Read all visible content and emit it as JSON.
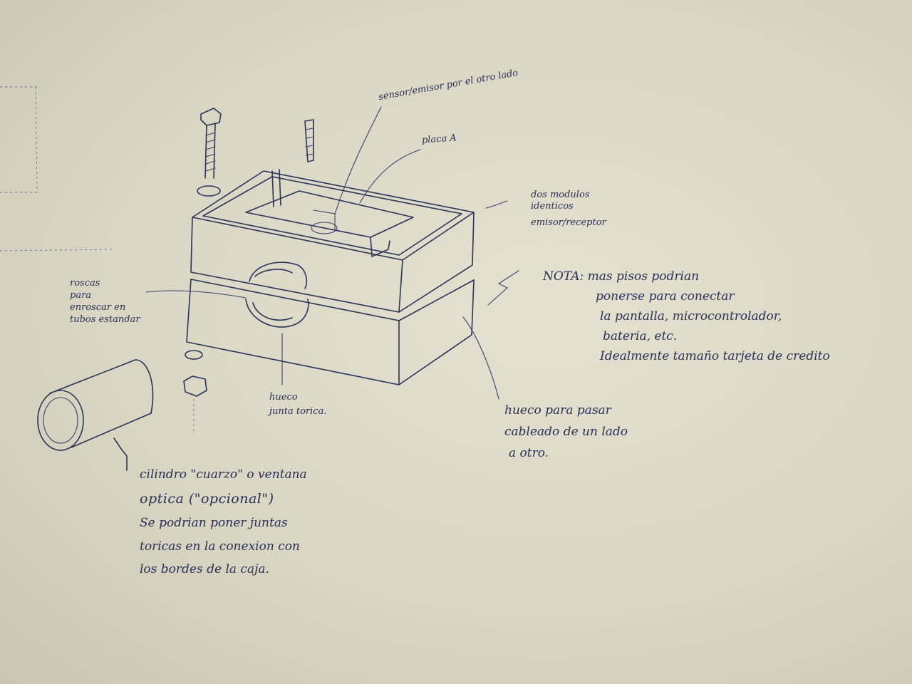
{
  "sketch": {
    "labels": {
      "sensor": "sensor/emisor por el otro lado",
      "placa": "placa A",
      "modulos": [
        "dos modulos",
        "identicos",
        "emisor/receptor"
      ],
      "nota": [
        "NOTA: mas pisos podrian",
        "ponerse para conectar",
        "la pantalla, microcontrolador,",
        "bateria, etc.",
        "Idealmente tamaño tarjeta de credito"
      ],
      "roscas": [
        "roscas",
        "para",
        "enroscar en",
        "tubos estandar"
      ],
      "hueco_junta": [
        "hueco",
        "junta torica."
      ],
      "hueco_cableado": [
        "hueco para pasar",
        "cableado de un lado",
        "a otro."
      ],
      "cilindro": [
        "cilindro \"cuarzo\" o ventana",
        "optica (\"opcional\")",
        "Se podrian poner juntas",
        "toricas en la conexion con",
        "los bordes de la caja."
      ]
    }
  }
}
